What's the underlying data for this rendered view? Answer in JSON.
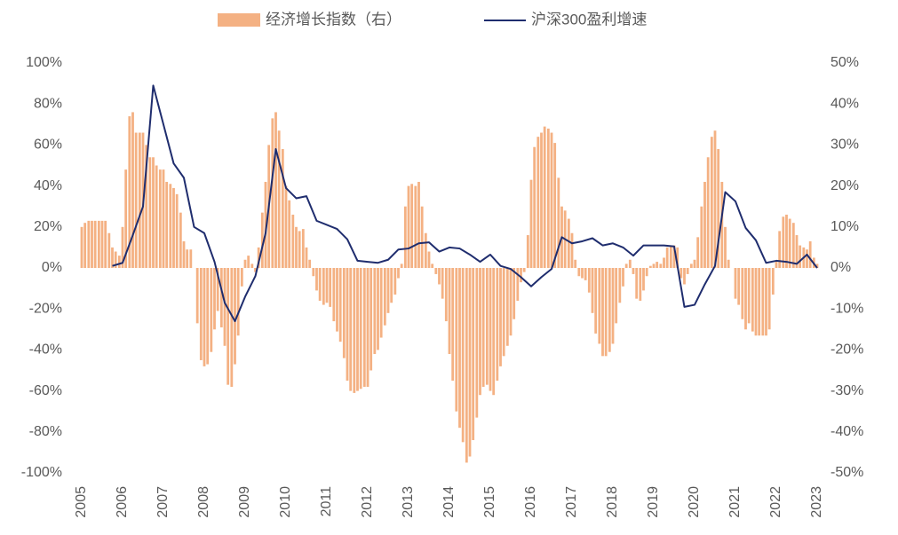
{
  "chart_data": {
    "type": "bar-line",
    "xlim": [
      2005,
      2023
    ],
    "xticks": [
      2005,
      2006,
      2007,
      2008,
      2009,
      2010,
      2011,
      2012,
      2013,
      2014,
      2015,
      2016,
      2017,
      2018,
      2019,
      2020,
      2021,
      2022,
      2023
    ],
    "ylim": [
      -100,
      100
    ],
    "yticks": [
      {
        "value": -100,
        "label": "-100%"
      },
      {
        "value": -80,
        "label": "-80%"
      },
      {
        "value": -60,
        "label": "-60%"
      },
      {
        "value": -40,
        "label": "-40%"
      },
      {
        "value": -20,
        "label": "-20%"
      },
      {
        "value": 0,
        "label": "0%"
      },
      {
        "value": 20,
        "label": "20%"
      },
      {
        "value": 40,
        "label": "40%"
      },
      {
        "value": 60,
        "label": "60%"
      },
      {
        "value": 80,
        "label": "80%"
      },
      {
        "value": 100,
        "label": "100%"
      }
    ],
    "y2lim": [
      -50,
      50
    ],
    "y2ticks": [
      {
        "value": -50,
        "label": "-50%"
      },
      {
        "value": -40,
        "label": "-40%"
      },
      {
        "value": -30,
        "label": "-30%"
      },
      {
        "value": -20,
        "label": "-20%"
      },
      {
        "value": -10,
        "label": "-10%"
      },
      {
        "value": 0,
        "label": "0%"
      },
      {
        "value": 10,
        "label": "10%"
      },
      {
        "value": 20,
        "label": "20%"
      },
      {
        "value": 30,
        "label": "30%"
      },
      {
        "value": 40,
        "label": "40%"
      },
      {
        "value": 50,
        "label": "50%"
      }
    ],
    "series": [
      {
        "name": "经济增长指数（右）",
        "type": "bar",
        "axis": "y2",
        "color": "#f4b183",
        "x": [
          2005.0,
          2005.08,
          2005.17,
          2005.25,
          2005.33,
          2005.42,
          2005.5,
          2005.58,
          2005.67,
          2005.75,
          2005.83,
          2005.92,
          2006.0,
          2006.08,
          2006.17,
          2006.25,
          2006.33,
          2006.42,
          2006.5,
          2006.58,
          2006.67,
          2006.75,
          2006.83,
          2006.92,
          2007.0,
          2007.08,
          2007.17,
          2007.25,
          2007.33,
          2007.42,
          2007.5,
          2007.58,
          2007.67,
          2007.75,
          2007.83,
          2007.92,
          2008.0,
          2008.08,
          2008.17,
          2008.25,
          2008.33,
          2008.42,
          2008.5,
          2008.58,
          2008.67,
          2008.75,
          2008.83,
          2008.92,
          2009.0,
          2009.08,
          2009.17,
          2009.25,
          2009.33,
          2009.42,
          2009.5,
          2009.58,
          2009.67,
          2009.75,
          2009.83,
          2009.92,
          2010.0,
          2010.08,
          2010.17,
          2010.25,
          2010.33,
          2010.42,
          2010.5,
          2010.58,
          2010.67,
          2010.75,
          2010.83,
          2010.92,
          2011.0,
          2011.08,
          2011.17,
          2011.25,
          2011.33,
          2011.42,
          2011.5,
          2011.58,
          2011.67,
          2011.75,
          2011.83,
          2011.92,
          2012.0,
          2012.08,
          2012.17,
          2012.25,
          2012.33,
          2012.42,
          2012.5,
          2012.58,
          2012.67,
          2012.75,
          2012.83,
          2012.92,
          2013.0,
          2013.08,
          2013.17,
          2013.25,
          2013.33,
          2013.42,
          2013.5,
          2013.58,
          2013.67,
          2013.75,
          2013.83,
          2013.92,
          2014.0,
          2014.08,
          2014.17,
          2014.25,
          2014.33,
          2014.42,
          2014.5,
          2014.58,
          2014.67,
          2014.75,
          2014.83,
          2014.92,
          2015.0,
          2015.08,
          2015.17,
          2015.25,
          2015.33,
          2015.42,
          2015.5,
          2015.58,
          2015.67,
          2015.75,
          2015.83,
          2015.92,
          2016.0,
          2016.08,
          2016.17,
          2016.25,
          2016.33,
          2016.42,
          2016.5,
          2016.58,
          2016.67,
          2016.75,
          2016.83,
          2016.92,
          2017.0,
          2017.08,
          2017.17,
          2017.25,
          2017.33,
          2017.42,
          2017.5,
          2017.58,
          2017.67,
          2017.75,
          2017.83,
          2017.92,
          2018.0,
          2018.08,
          2018.17,
          2018.25,
          2018.33,
          2018.42,
          2018.5,
          2018.58,
          2018.67,
          2018.75,
          2018.83,
          2018.92,
          2019.0,
          2019.08,
          2019.17,
          2019.25,
          2019.33,
          2019.42,
          2019.5,
          2019.58,
          2019.67,
          2019.75,
          2019.83,
          2019.92,
          2020.0,
          2020.08,
          2020.17,
          2020.25,
          2020.33,
          2020.42,
          2020.5,
          2020.58,
          2020.67,
          2020.75,
          2020.83,
          2020.92,
          2021.0,
          2021.08,
          2021.17,
          2021.25,
          2021.33,
          2021.42,
          2021.5,
          2021.58,
          2021.67,
          2021.75,
          2021.83,
          2021.92,
          2022.0,
          2022.08,
          2022.17,
          2022.25,
          2022.33,
          2022.42,
          2022.5,
          2022.58,
          2022.67,
          2022.75,
          2022.83,
          2022.92,
          2023.0
        ],
        "values": [
          10,
          11,
          11.5,
          11.5,
          11.5,
          11.5,
          11.5,
          11.5,
          8.5,
          5,
          4,
          3,
          10,
          24,
          37,
          38,
          33,
          33,
          33,
          30,
          27,
          27,
          25,
          24,
          24,
          21,
          20.5,
          19.5,
          18,
          13.5,
          6.5,
          4.5,
          4.5,
          0,
          -13.5,
          -22.5,
          -24,
          -23.5,
          -20.5,
          -15,
          -10.5,
          -14.5,
          -19,
          -28.5,
          -29,
          -23.5,
          -16.5,
          -4.5,
          2,
          3,
          1,
          -1,
          5,
          13.5,
          21,
          30,
          36.5,
          38,
          33.5,
          29,
          20,
          16.5,
          13,
          10,
          9,
          9.5,
          5,
          2,
          -2,
          -5.5,
          -8,
          -9,
          -8.5,
          -9.5,
          -13,
          -15.5,
          -18,
          -22,
          -27.5,
          -30,
          -30.5,
          -30,
          -29.5,
          -29,
          -29,
          -25,
          -21,
          -20,
          -17,
          -14,
          -11,
          -8.5,
          -6.5,
          -2.5,
          1,
          15,
          20,
          20.5,
          20,
          21,
          15,
          8.5,
          4,
          1,
          -1.5,
          -4,
          -7.5,
          -13,
          -21,
          -27.5,
          -35,
          -39,
          -42.5,
          -47.5,
          -46,
          -42,
          -36.5,
          -31,
          -29,
          -28.5,
          -30,
          -31,
          -27.5,
          -24,
          -21.5,
          -19,
          -16.5,
          -12.5,
          -8,
          -3.5,
          -1,
          8,
          21.5,
          29.5,
          32,
          33,
          34.5,
          34,
          33,
          30.5,
          22,
          15,
          14,
          12,
          8.5,
          2,
          -2,
          -2.5,
          -3,
          -6,
          -11,
          -16,
          -18.5,
          -21.5,
          -21.5,
          -20.5,
          -18.5,
          -13.5,
          -8.5,
          -4.5,
          1,
          2,
          -1.5,
          -7.5,
          -8,
          -5.5,
          -2,
          0.5,
          1,
          1.5,
          1,
          2.5,
          5,
          5.5,
          5.5,
          5,
          -2.5,
          -4,
          -1.5,
          1,
          2,
          7.5,
          15,
          21,
          27,
          32,
          33.5,
          29,
          21,
          10,
          2,
          0,
          -7.5,
          -9,
          -12.5,
          -15,
          -13.5,
          -15.5,
          -16.5,
          -16.5,
          -16.5,
          -16.5,
          -15,
          -6.5,
          1.5,
          9,
          12.5,
          13,
          12,
          11,
          8,
          5.5,
          5,
          4.5,
          6.5,
          2.5,
          1
        ]
      },
      {
        "name": "沪深300盈利增速",
        "type": "line",
        "axis": "y",
        "color": "#1f2d6e",
        "x": [
          2005.75,
          2006,
          2006.25,
          2006.5,
          2006.75,
          2007,
          2007.25,
          2007.5,
          2007.75,
          2008,
          2008.25,
          2008.5,
          2008.75,
          2009,
          2009.25,
          2009.5,
          2009.75,
          2010,
          2010.25,
          2010.5,
          2010.75,
          2011,
          2011.25,
          2011.5,
          2011.75,
          2012,
          2012.25,
          2012.5,
          2012.75,
          2013,
          2013.25,
          2013.5,
          2013.75,
          2014,
          2014.25,
          2014.5,
          2014.75,
          2015,
          2015.25,
          2015.5,
          2015.75,
          2016,
          2016.25,
          2016.5,
          2016.75,
          2017,
          2017.25,
          2017.5,
          2017.75,
          2018,
          2018.25,
          2018.5,
          2018.75,
          2019,
          2019.25,
          2019.5,
          2019.75,
          2020,
          2020.25,
          2020.5,
          2020.75,
          2021,
          2021.25,
          2021.5,
          2021.75,
          2022,
          2022.25,
          2022.5,
          2022.75,
          2023
        ],
        "values": [
          1,
          2.5,
          16,
          30,
          89,
          70,
          51,
          44,
          20,
          17,
          3,
          -17,
          -26,
          -14,
          -4,
          17,
          58,
          39,
          34,
          35,
          23,
          21,
          19,
          14,
          3.5,
          3,
          2.5,
          4,
          9,
          9.5,
          12,
          12.5,
          8,
          10,
          9.5,
          6.5,
          3,
          6.5,
          1,
          -0.5,
          -4.5,
          -9,
          -4.5,
          -0.5,
          15,
          12,
          13,
          14.5,
          11,
          12,
          10,
          6,
          11,
          11,
          11,
          10.5,
          -19,
          -18,
          -8,
          1,
          37,
          32.5,
          19.5,
          13.5,
          2.5,
          3.5,
          3,
          2,
          6.5,
          0
        ]
      }
    ]
  }
}
